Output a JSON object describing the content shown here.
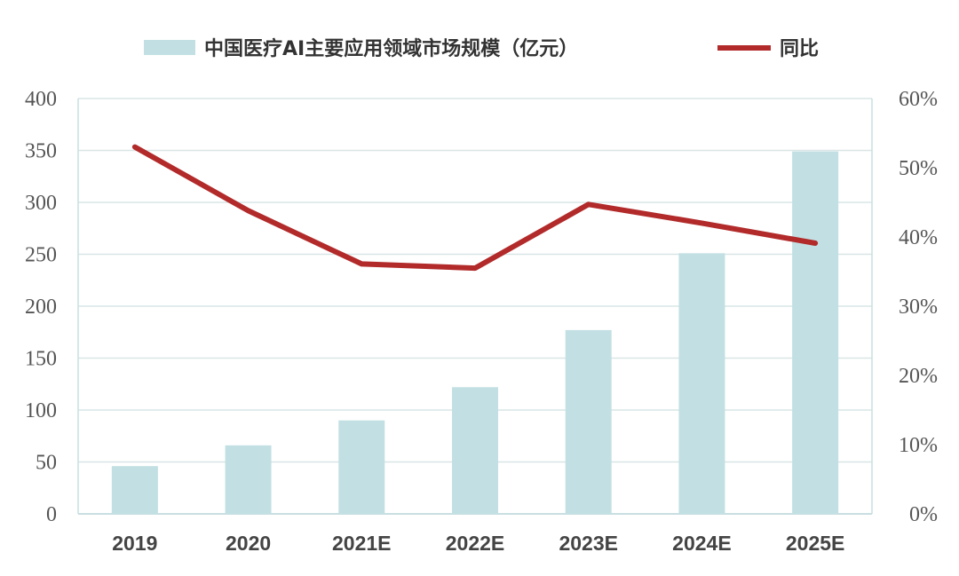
{
  "chart_data": {
    "type": "bar+line",
    "categories": [
      "2019",
      "2020",
      "2021E",
      "2022E",
      "2023E",
      "2024E",
      "2025E"
    ],
    "series": [
      {
        "name": "中国医疗AI主要应用领域市场规模（亿元）",
        "type": "bar",
        "axis": "left",
        "color": "#c2e0e3",
        "values": [
          46,
          66,
          90,
          122,
          177,
          251,
          349
        ]
      },
      {
        "name": "同比",
        "type": "line",
        "axis": "right",
        "color": "#b22a2a",
        "values": [
          0.53,
          0.438,
          0.361,
          0.355,
          0.447,
          0.42,
          0.391
        ]
      }
    ],
    "left_axis": {
      "ylim": [
        0,
        400
      ],
      "ticks": [
        "0",
        "50",
        "100",
        "150",
        "200",
        "250",
        "300",
        "350",
        "400"
      ]
    },
    "right_axis": {
      "ylim": [
        0,
        0.6
      ],
      "ticks": [
        "0%",
        "10%",
        "20%",
        "30%",
        "40%",
        "50%",
        "60%"
      ]
    },
    "grid": true,
    "legend": "top-center"
  }
}
